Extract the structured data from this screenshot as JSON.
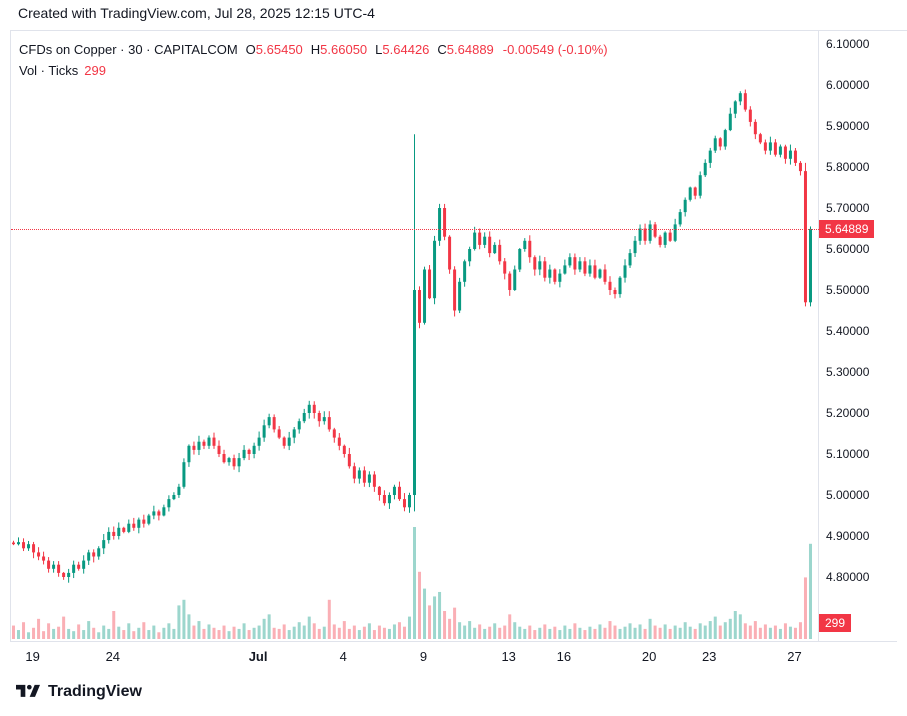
{
  "header": {
    "text": "Created with TradingView.com, Jul 28, 2025 12:15 UTC-4"
  },
  "legend": {
    "title": "CFDs on Copper · 30 · CAPITALCOM",
    "ohlc": [
      {
        "k": "O",
        "v": "5.65450"
      },
      {
        "k": "H",
        "v": "5.66050"
      },
      {
        "k": "L",
        "v": "5.64426"
      },
      {
        "k": "C",
        "v": "5.64889"
      }
    ],
    "change": "-0.00549 (-0.10%)",
    "vol_label": "Vol · Ticks",
    "vol_value": "299"
  },
  "footer": {
    "brand": "TradingView"
  },
  "colors": {
    "up": "#089981",
    "down": "#f23645",
    "accent": "#f23645",
    "text": "#131722",
    "grid": "#e0e3eb"
  },
  "axis": {
    "price_labels": [
      "6.10000",
      "6.00000",
      "5.90000",
      "5.80000",
      "5.70000",
      "5.60000",
      "5.50000",
      "5.40000",
      "5.30000",
      "5.20000",
      "5.10000",
      "5.00000",
      "4.90000",
      "4.80000"
    ],
    "last_price": 5.64889,
    "last_price_label": "5.64889",
    "volume_label": "299",
    "time_labels": [
      {
        "t": "19",
        "i": 4
      },
      {
        "t": "24",
        "i": 20
      },
      {
        "t": "Jul",
        "i": 49,
        "bold": true
      },
      {
        "t": "4",
        "i": 66
      },
      {
        "t": "9",
        "i": 82
      },
      {
        "t": "13",
        "i": 99
      },
      {
        "t": "16",
        "i": 110
      },
      {
        "t": "20",
        "i": 127
      },
      {
        "t": "23",
        "i": 139
      },
      {
        "t": "27",
        "i": 156
      }
    ]
  },
  "chart_data": {
    "type": "candlestick+volume",
    "title": "CFDs on Copper · 30 · CAPITALCOM",
    "symbol": "CFDs on Copper",
    "interval": "30",
    "exchange": "CAPITALCOM",
    "ohlc_current": {
      "o": 5.6545,
      "h": 5.6605,
      "l": 5.64426,
      "c": 5.64889
    },
    "change": -0.00549,
    "change_pct": -0.1,
    "volume_ticks": 299,
    "ylim": [
      4.8,
      6.1
    ],
    "x_ticks": [
      "19",
      "24",
      "Jul",
      "4",
      "9",
      "13",
      "16",
      "20",
      "23",
      "27"
    ],
    "y_ticks": [
      "6.10000",
      "6.00000",
      "5.90000",
      "5.80000",
      "5.70000",
      "5.60000",
      "5.50000",
      "5.40000",
      "5.30000",
      "5.20000",
      "5.10000",
      "5.00000",
      "4.90000",
      "4.80000"
    ],
    "closes": [
      4.88,
      4.885,
      4.87,
      4.88,
      4.86,
      4.85,
      4.84,
      4.82,
      4.83,
      4.81,
      4.8,
      4.81,
      4.83,
      4.82,
      4.84,
      4.86,
      4.85,
      4.87,
      4.89,
      4.91,
      4.9,
      4.92,
      4.91,
      4.93,
      4.92,
      4.94,
      4.93,
      4.95,
      4.96,
      4.95,
      4.97,
      4.99,
      5.0,
      5.02,
      5.08,
      5.12,
      5.11,
      5.13,
      5.12,
      5.14,
      5.12,
      5.1,
      5.08,
      5.09,
      5.07,
      5.09,
      5.11,
      5.1,
      5.12,
      5.14,
      5.17,
      5.19,
      5.16,
      5.14,
      5.12,
      5.14,
      5.16,
      5.18,
      5.2,
      5.22,
      5.2,
      5.18,
      5.19,
      5.16,
      5.14,
      5.12,
      5.1,
      5.07,
      5.04,
      5.06,
      5.03,
      5.05,
      5.02,
      5.0,
      4.98,
      5.0,
      5.02,
      4.99,
      4.97,
      5.0,
      5.5,
      5.42,
      5.55,
      5.48,
      5.62,
      5.7,
      5.63,
      5.55,
      5.45,
      5.52,
      5.57,
      5.6,
      5.64,
      5.61,
      5.63,
      5.59,
      5.61,
      5.57,
      5.54,
      5.5,
      5.55,
      5.6,
      5.62,
      5.58,
      5.55,
      5.57,
      5.53,
      5.55,
      5.52,
      5.54,
      5.56,
      5.58,
      5.55,
      5.57,
      5.54,
      5.56,
      5.53,
      5.55,
      5.52,
      5.5,
      5.49,
      5.53,
      5.56,
      5.59,
      5.62,
      5.65,
      5.62,
      5.66,
      5.63,
      5.61,
      5.64,
      5.62,
      5.66,
      5.69,
      5.72,
      5.75,
      5.73,
      5.78,
      5.81,
      5.84,
      5.87,
      5.85,
      5.89,
      5.93,
      5.96,
      5.98,
      5.94,
      5.91,
      5.88,
      5.86,
      5.84,
      5.86,
      5.83,
      5.85,
      5.82,
      5.84,
      5.81,
      5.79,
      5.47,
      5.649
    ],
    "volumes": [
      12,
      8,
      15,
      6,
      10,
      18,
      7,
      14,
      9,
      11,
      20,
      9,
      7,
      13,
      8,
      16,
      10,
      6,
      12,
      9,
      25,
      11,
      8,
      14,
      7,
      10,
      15,
      8,
      12,
      6,
      10,
      14,
      9,
      30,
      35,
      22,
      12,
      16,
      9,
      13,
      10,
      8,
      12,
      7,
      11,
      9,
      14,
      8,
      10,
      12,
      18,
      22,
      10,
      9,
      13,
      8,
      11,
      15,
      12,
      20,
      14,
      9,
      11,
      35,
      13,
      10,
      16,
      9,
      12,
      8,
      11,
      14,
      8,
      12,
      10,
      9,
      13,
      15,
      11,
      20,
      100,
      60,
      45,
      30,
      38,
      42,
      25,
      18,
      28,
      15,
      12,
      16,
      10,
      13,
      9,
      11,
      14,
      10,
      12,
      22,
      15,
      11,
      9,
      12,
      8,
      10,
      13,
      9,
      11,
      8,
      12,
      9,
      14,
      10,
      8,
      11,
      9,
      13,
      10,
      16,
      12,
      9,
      11,
      14,
      10,
      13,
      9,
      18,
      12,
      10,
      13,
      9,
      12,
      10,
      15,
      11,
      9,
      14,
      12,
      16,
      20,
      12,
      15,
      18,
      25,
      22,
      14,
      12,
      16,
      10,
      13,
      10,
      12,
      9,
      14,
      11,
      10,
      15,
      55,
      85
    ],
    "overrides": {
      "80": {
        "o": 5.0,
        "h": 5.88,
        "l": 4.96,
        "c": 5.5
      },
      "158": {
        "o": 5.79,
        "h": 5.81,
        "l": 5.46,
        "c": 5.47
      },
      "159": {
        "o": 5.47,
        "h": 5.655,
        "l": 5.46,
        "c": 5.64889
      }
    }
  }
}
